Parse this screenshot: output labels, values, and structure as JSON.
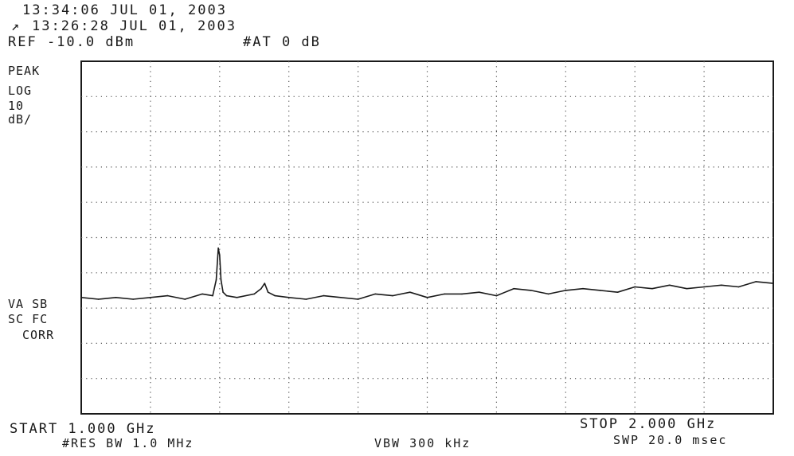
{
  "header": {
    "time_line": "13:34:06 JUL 01, 2003",
    "marker_symbol": "↗",
    "marker_time_line": "13:26:28 JUL 01, 2003",
    "ref_level": "REF -10.0 dBm",
    "attenuation": "#AT 0 dB"
  },
  "left_annotations": {
    "detector": "PEAK",
    "scale_type": "LOG",
    "scale_value": "10",
    "scale_unit": "dB/",
    "va_sb": "VA SB",
    "sc_fc": "SC FC",
    "corr": "CORR"
  },
  "footer": {
    "start": "START 1.000 GHz",
    "stop": "STOP 2.000 GHz",
    "rbw": "#RES BW 1.0 MHz",
    "vbw": "VBW 300 kHz",
    "sweep": "SWP 20.0 msec"
  },
  "colors": {
    "ink": "#1a1a1a",
    "grid": "#555555",
    "background": "#ffffff"
  },
  "chart_data": {
    "type": "line",
    "x_unit": "GHz",
    "y_unit": "dBm",
    "xlim": [
      1.0,
      2.0
    ],
    "ylim": [
      -110,
      -10
    ],
    "grid": true,
    "divisions_x": 10,
    "divisions_y": 10,
    "series": [
      {
        "x": [
          1.0,
          1.025,
          1.05,
          1.075,
          1.1,
          1.125,
          1.15,
          1.175,
          1.19,
          1.195,
          1.198,
          1.2,
          1.202,
          1.205,
          1.21,
          1.225,
          1.25,
          1.26,
          1.265,
          1.27,
          1.28,
          1.3,
          1.325,
          1.35,
          1.375,
          1.4,
          1.425,
          1.45,
          1.475,
          1.5,
          1.525,
          1.55,
          1.575,
          1.6,
          1.625,
          1.65,
          1.675,
          1.7,
          1.725,
          1.75,
          1.775,
          1.8,
          1.825,
          1.85,
          1.875,
          1.9,
          1.925,
          1.95,
          1.975,
          2.0
        ],
        "y": [
          -77.0,
          -77.5,
          -77.0,
          -77.5,
          -77.0,
          -76.5,
          -77.5,
          -76.0,
          -76.5,
          -72.0,
          -63.0,
          -65.0,
          -72.0,
          -75.5,
          -76.5,
          -77.0,
          -76.0,
          -74.5,
          -73.0,
          -75.5,
          -76.5,
          -77.0,
          -77.5,
          -76.5,
          -77.0,
          -77.5,
          -76.0,
          -76.5,
          -75.5,
          -77.0,
          -76.0,
          -76.0,
          -75.5,
          -76.5,
          -74.5,
          -75.0,
          -76.0,
          -75.0,
          -74.5,
          -75.0,
          -75.5,
          -74.0,
          -74.5,
          -73.5,
          -74.5,
          -74.0,
          -73.5,
          -74.0,
          -72.5,
          -73.0
        ]
      }
    ]
  }
}
